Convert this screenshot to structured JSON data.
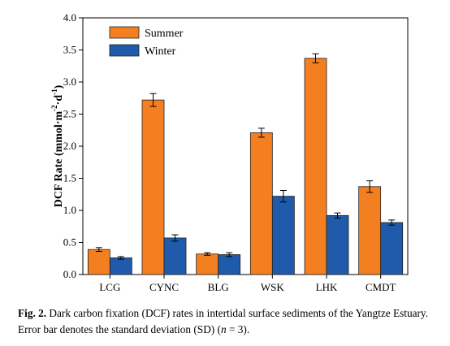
{
  "chart_data": {
    "type": "bar",
    "categories": [
      "LCG",
      "CYNC",
      "BLG",
      "WSK",
      "LHK",
      "CMDT"
    ],
    "series": [
      {
        "name": "Summer",
        "color": "#F47F20",
        "values": [
          0.39,
          2.72,
          0.32,
          2.21,
          3.37,
          1.37
        ],
        "errors": [
          0.03,
          0.1,
          0.02,
          0.07,
          0.07,
          0.09
        ]
      },
      {
        "name": "Winter",
        "color": "#1F5BAA",
        "values": [
          0.26,
          0.57,
          0.31,
          1.22,
          0.92,
          0.81
        ],
        "errors": [
          0.02,
          0.05,
          0.03,
          0.09,
          0.04,
          0.04
        ]
      }
    ],
    "ylabel_main": "DCF Rate (mmol·m",
    "ylabel_sup1": "-2",
    "ylabel_mid": "·d",
    "ylabel_sup2": "-1",
    "ylabel_end": ")",
    "ylim": [
      0,
      4.0
    ],
    "yticks": [
      "0.0",
      "0.5",
      "1.0",
      "1.5",
      "2.0",
      "2.5",
      "3.0",
      "3.5",
      "4.0"
    ],
    "grid": false,
    "legend_position": "top-left"
  },
  "caption": {
    "label": "Fig. 2.",
    "text": "Dark carbon fixation (DCF) rates in intertidal surface sediments of the Yangtze Estuary. Error bar denotes the standard deviation (SD) (",
    "n_text": "n",
    "end_text": " = 3)."
  }
}
